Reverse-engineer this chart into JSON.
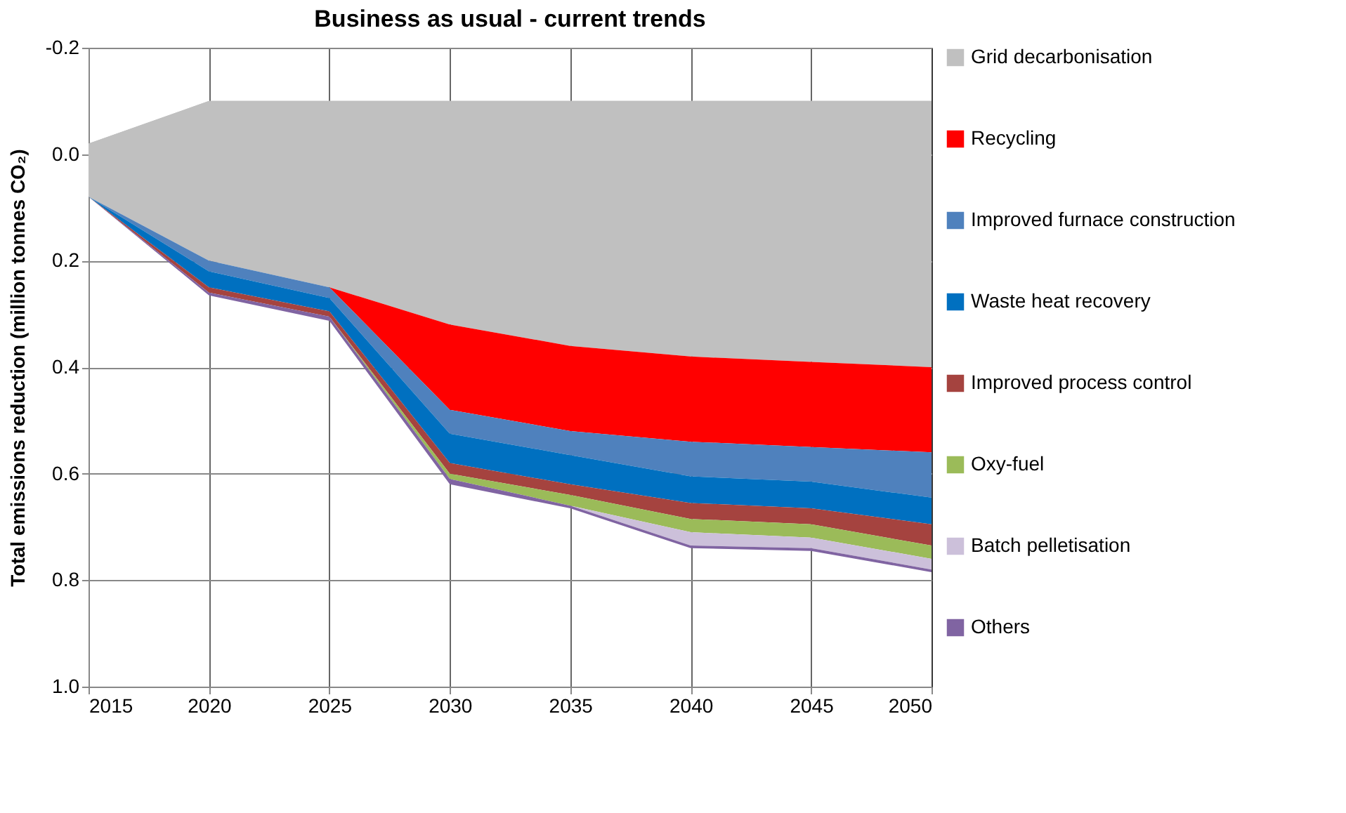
{
  "chart_data": {
    "type": "area",
    "title": "Business as usual - current trends",
    "ylabel": "Total emissions reduction (million tonnes CO₂)",
    "x": [
      2015,
      2020,
      2025,
      2030,
      2035,
      2040,
      2045,
      2050
    ],
    "stacked": true,
    "series": [
      {
        "color": "#c0c0c0",
        "values": [
          -0.02,
          -0.1,
          -0.1,
          -0.1,
          -0.1,
          -0.1,
          -0.1,
          -0.1
        ]
      },
      {
        "name": "Grid decarbonisation",
        "color": "#c0c0c0",
        "values": [
          0.1,
          0.3,
          0.35,
          0.42,
          0.46,
          0.48,
          0.49,
          0.5
        ]
      },
      {
        "name": "Recycling",
        "color": "#ff0000",
        "values": [
          0,
          0,
          0,
          0.16,
          0.16,
          0.16,
          0.16,
          0.16
        ]
      },
      {
        "name": "Improved furnace construction",
        "color": "#4f81bd",
        "values": [
          0,
          0.02,
          0.02,
          0.045,
          0.045,
          0.065,
          0.065,
          0.085
        ]
      },
      {
        "name": "Waste heat recovery",
        "color": "#0070c0",
        "values": [
          0,
          0.03,
          0.025,
          0.055,
          0.055,
          0.05,
          0.05,
          0.05
        ]
      },
      {
        "name": "Improved process control",
        "color": "#a5433f",
        "values": [
          0,
          0.01,
          0.01,
          0.02,
          0.02,
          0.03,
          0.03,
          0.04
        ]
      },
      {
        "name": "Oxy-fuel",
        "color": "#9bbb59",
        "values": [
          0,
          0,
          0,
          0.01,
          0.02,
          0.025,
          0.025,
          0.025
        ]
      },
      {
        "name": "Batch pelletisation",
        "color": "#ccc0da",
        "values": [
          0,
          0,
          0,
          0,
          0,
          0.025,
          0.02,
          0.02
        ]
      },
      {
        "name": "Others",
        "color": "#8064a2",
        "values": [
          0,
          0.005,
          0.008,
          0.01,
          0.005,
          0.005,
          0.005,
          0.005
        ]
      }
    ],
    "xlim": [
      2015,
      2050
    ],
    "xticks": [
      2015,
      2020,
      2025,
      2030,
      2035,
      2040,
      2045,
      2050
    ],
    "ylim": [
      1.0,
      -0.2
    ],
    "yticks": [
      {
        "value": -0.2,
        "label": "-0.2"
      },
      {
        "value": 0,
        "label": "0.0"
      },
      {
        "value": 0.2,
        "label": "0.2"
      },
      {
        "value": 0.4,
        "label": "0.4"
      },
      {
        "value": 0.6,
        "label": "0.6"
      },
      {
        "value": 0.8,
        "label": "0.8"
      },
      {
        "value": 1,
        "label": "1.0"
      }
    ],
    "grid": true,
    "legend": "right"
  }
}
